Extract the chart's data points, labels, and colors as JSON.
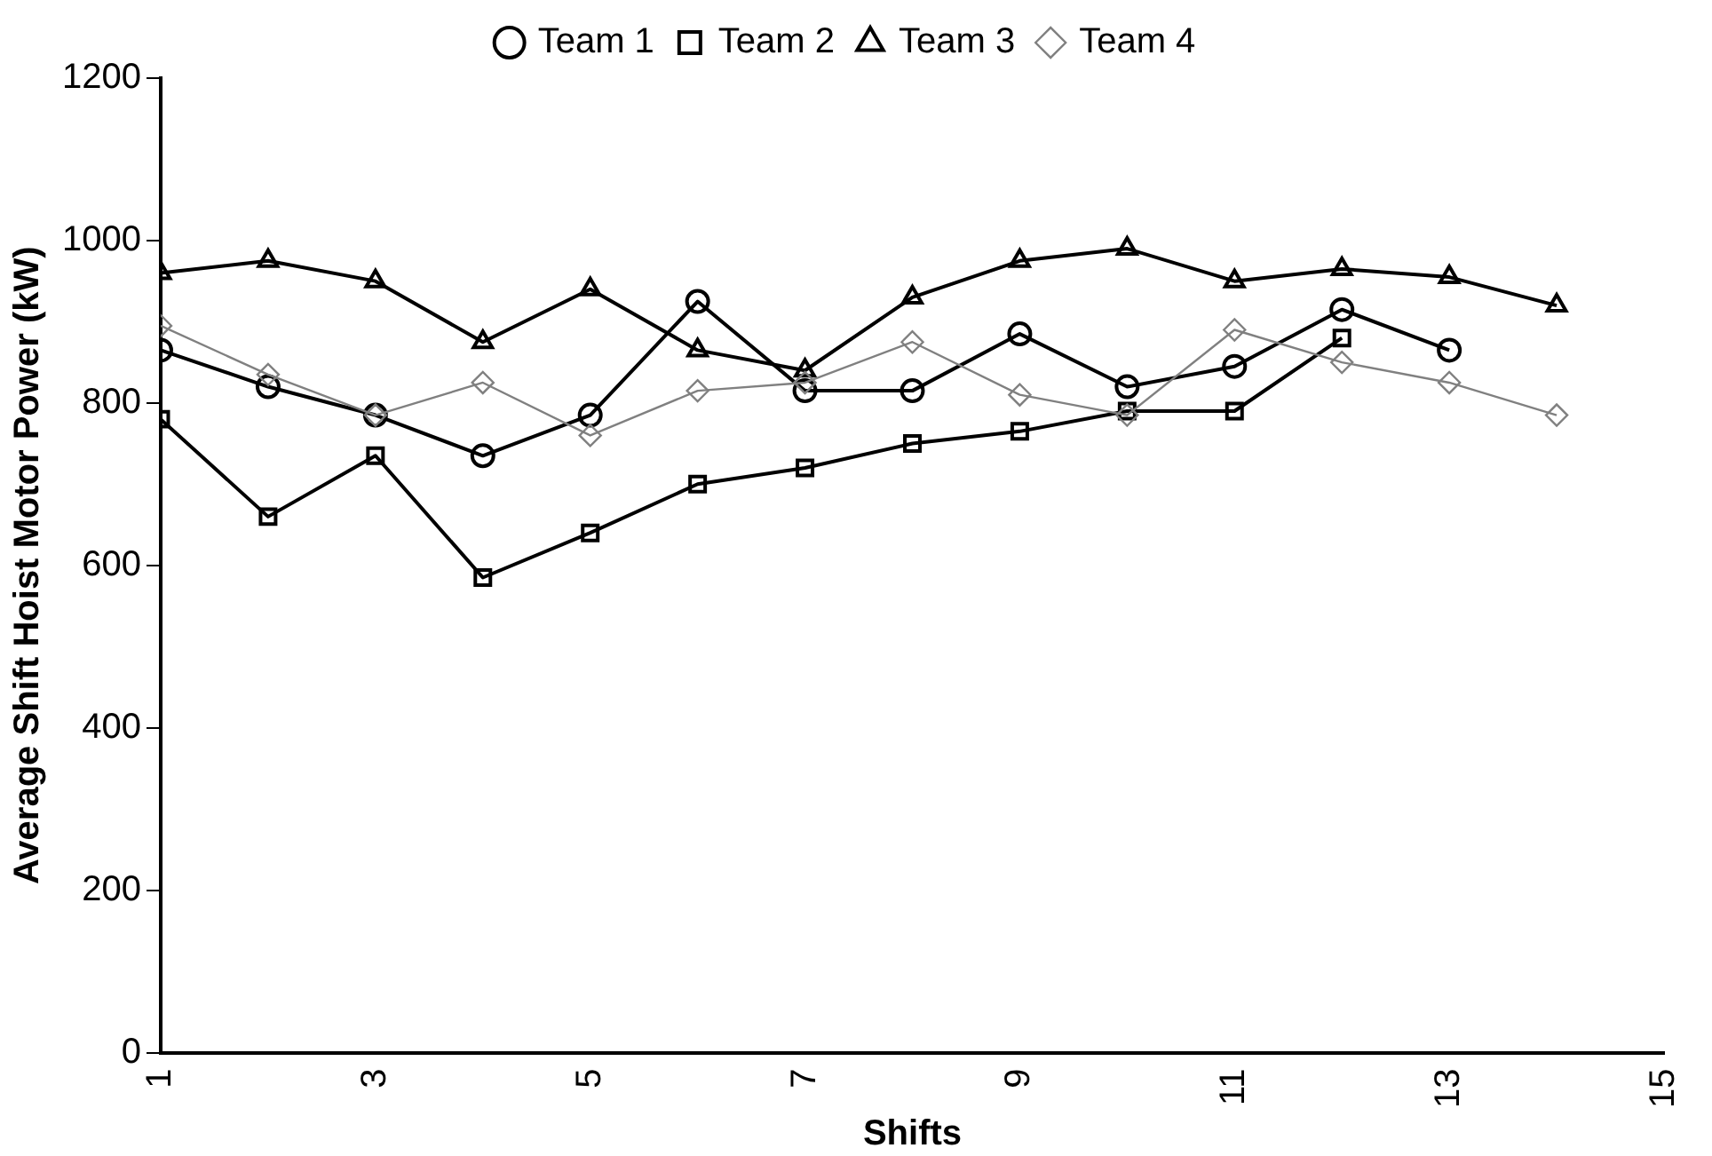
{
  "chart_data": {
    "type": "line",
    "xlabel": "Shifts",
    "ylabel": "Average Shift Hoist Motor Power (kW)",
    "xlim": [
      1,
      15
    ],
    "xticks": [
      1,
      3,
      5,
      7,
      9,
      11,
      13,
      15
    ],
    "ylim": [
      0,
      1200
    ],
    "yticks": [
      0,
      200,
      400,
      600,
      800,
      1000,
      1200
    ],
    "grid": false,
    "legend": "top",
    "line_style": "solid",
    "series": [
      {
        "name": "Team 1",
        "color": "#000000",
        "marker": "circle",
        "x": [
          1,
          2,
          3,
          4,
          5,
          6,
          7,
          8,
          9,
          10,
          11,
          12,
          13
        ],
        "values": [
          865,
          820,
          785,
          735,
          785,
          925,
          815,
          815,
          885,
          820,
          845,
          915,
          865
        ]
      },
      {
        "name": "Team 2",
        "color": "#000000",
        "marker": "square",
        "x": [
          1,
          2,
          3,
          4,
          5,
          6,
          7,
          8,
          9,
          10,
          11,
          12
        ],
        "values": [
          780,
          660,
          735,
          585,
          640,
          700,
          720,
          750,
          765,
          790,
          790,
          880
        ]
      },
      {
        "name": "Team 3",
        "color": "#000000",
        "marker": "triangle",
        "x": [
          1,
          2,
          3,
          4,
          5,
          6,
          7,
          8,
          9,
          10,
          11,
          12,
          13,
          14
        ],
        "values": [
          960,
          975,
          950,
          875,
          940,
          865,
          840,
          930,
          975,
          990,
          950,
          965,
          955,
          920
        ]
      },
      {
        "name": "Team 4",
        "color": "#808080",
        "marker": "diamond",
        "x": [
          1,
          2,
          3,
          4,
          5,
          6,
          7,
          8,
          9,
          10,
          11,
          12,
          13,
          14
        ],
        "values": [
          895,
          835,
          785,
          825,
          760,
          815,
          825,
          875,
          810,
          785,
          890,
          850,
          825,
          785
        ]
      }
    ]
  }
}
